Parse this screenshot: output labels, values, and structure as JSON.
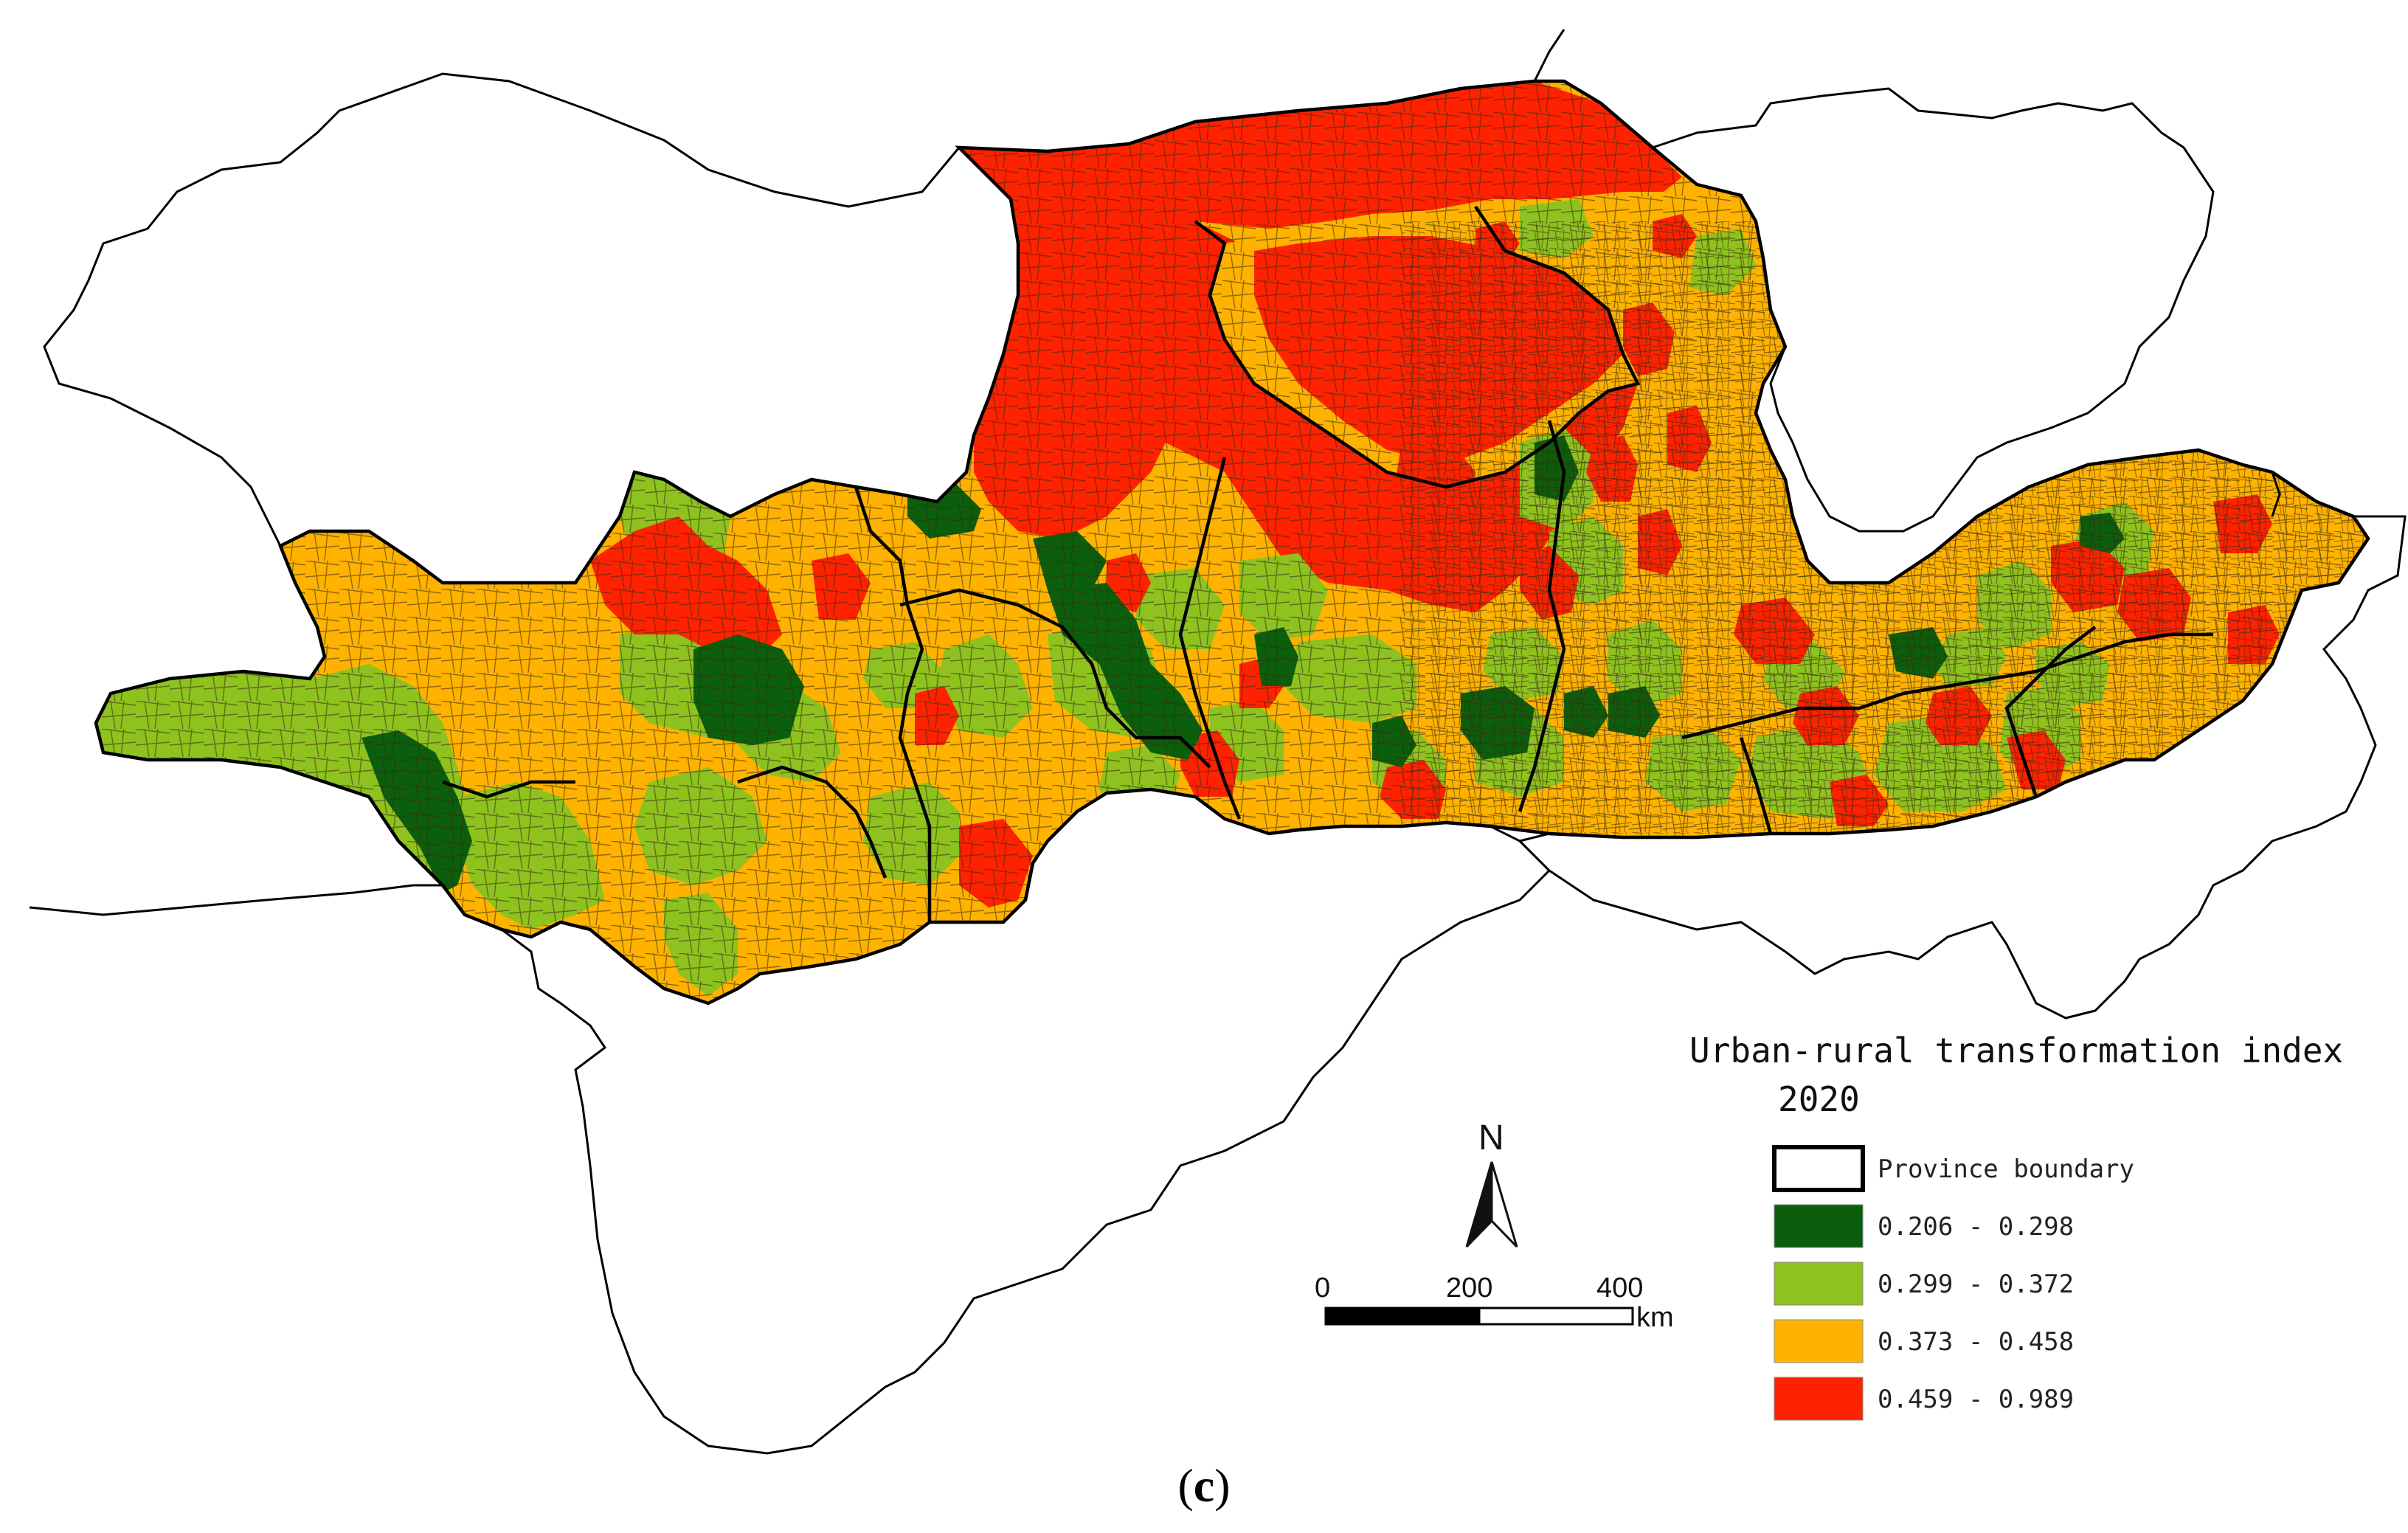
{
  "legend": {
    "title": "Urban-rural transformation index",
    "year": "2020",
    "boundary_label": "Province boundary",
    "classes": [
      {
        "label": "0.206 - 0.298",
        "color": "#0b5e0b"
      },
      {
        "label": "0.299 - 0.372",
        "color": "#8dc21f"
      },
      {
        "label": "0.373 - 0.458",
        "color": "#ffb300"
      },
      {
        "label": "0.459 - 0.989",
        "color": "#ff2200"
      }
    ]
  },
  "north_arrow": {
    "label": "N"
  },
  "scale_bar": {
    "ticks": [
      "0",
      "200",
      "400"
    ],
    "unit": "km"
  },
  "caption": {
    "open": "(",
    "letter": "c",
    "close": ")"
  }
}
